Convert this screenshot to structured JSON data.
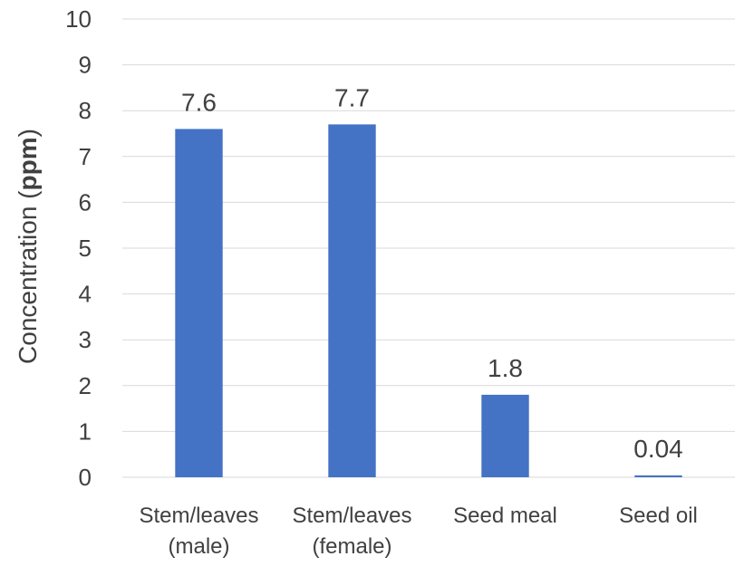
{
  "chart_data": {
    "type": "bar",
    "categories": [
      [
        "Stem/leaves",
        "(male)"
      ],
      [
        "Stem/leaves",
        "(female)"
      ],
      [
        "Seed meal"
      ],
      [
        "Seed oil"
      ]
    ],
    "values": [
      7.6,
      7.7,
      1.8,
      0.04
    ],
    "data_labels": [
      "7.6",
      "7.7",
      "1.8",
      "0.04"
    ],
    "title": "",
    "xlabel": "",
    "ylabel": {
      "prefix": "Concentration ",
      "open_paren": "(",
      "bold_text": "ppm",
      "close_paren": ")"
    },
    "ylim": [
      0,
      10
    ],
    "yticks": [
      0,
      1,
      2,
      3,
      4,
      5,
      6,
      7,
      8,
      9,
      10
    ],
    "grid": true,
    "legend": "none",
    "colors": {
      "bar": "#4472c4",
      "grid": "#d9d9d9",
      "text": "#404040"
    }
  }
}
